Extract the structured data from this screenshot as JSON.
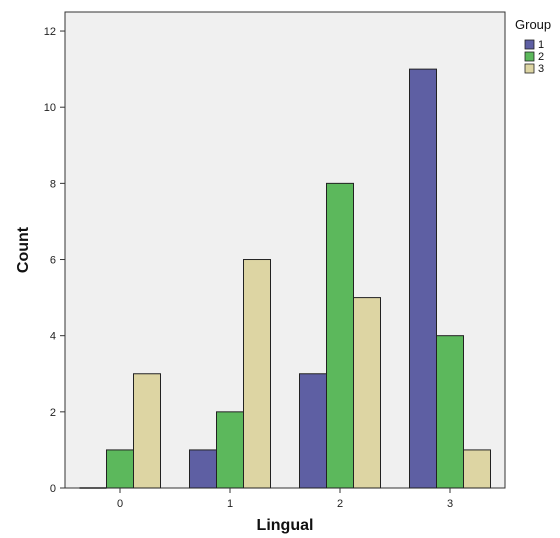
{
  "chart_data": {
    "type": "bar",
    "xlabel": "Lingual",
    "ylabel": "Count",
    "categories": [
      "0",
      "1",
      "2",
      "3"
    ],
    "ylim": [
      0,
      12.5
    ],
    "yticks": [
      0,
      2,
      4,
      6,
      8,
      10,
      12
    ],
    "legend": {
      "title": "Group",
      "placement": "top-right, outside plot"
    },
    "series": [
      {
        "name": "1",
        "values": [
          0,
          1,
          3,
          11
        ],
        "color": "#5e5fa3"
      },
      {
        "name": "2",
        "values": [
          1,
          2,
          8,
          4
        ],
        "color": "#5cb85c"
      },
      {
        "name": "3",
        "values": [
          3,
          6,
          5,
          1
        ],
        "color": "#ddd5a3"
      }
    ],
    "plot_background": "#f0f0f0",
    "grid": false
  }
}
